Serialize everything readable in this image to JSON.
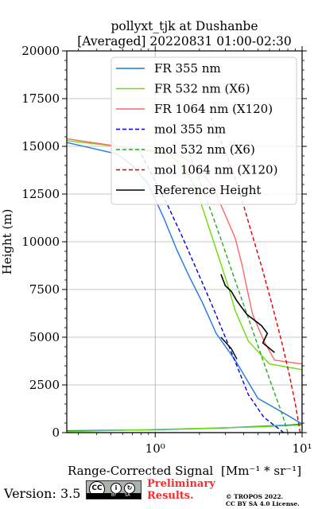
{
  "chart_data": {
    "type": "line",
    "title": "pollyxt_tjk at Dushanbe",
    "subtitle": "[Averaged] 20220831 01:00-02:30",
    "xlabel": "Range-Corrected Signal",
    "xlabel_unit": "[Mm⁻¹ * sr⁻¹]",
    "ylabel": "Height (m)",
    "xscale": "log",
    "xlim": [
      0.25,
      10
    ],
    "ylim": [
      0,
      20000
    ],
    "xticks": [
      {
        "value": 1,
        "label": "10⁰"
      },
      {
        "value": 10,
        "label": "10¹"
      }
    ],
    "yticks": [
      0,
      2500,
      5000,
      7500,
      10000,
      12500,
      15000,
      17500,
      20000
    ],
    "ytick_labels": [
      "0",
      "2500",
      "5000",
      "7500",
      "10000",
      "12500",
      "15000",
      "17500",
      "20000"
    ],
    "grid": true,
    "legend_position": "top-right",
    "series": [
      {
        "name": "FR 355 nm",
        "style": "solid",
        "color": "#1f77e4",
        "points": [
          [
            0.25,
            100
          ],
          [
            1,
            150
          ],
          [
            3,
            250
          ],
          [
            8,
            400
          ],
          [
            10,
            450
          ],
          [
            8,
            900
          ],
          [
            5,
            1800
          ],
          [
            3.5,
            3800
          ],
          [
            2.6,
            5200
          ],
          [
            2.1,
            6800
          ],
          [
            1.7,
            8200
          ],
          [
            1.4,
            9600
          ],
          [
            1.15,
            11200
          ],
          [
            0.9,
            13000
          ],
          [
            0.7,
            14000
          ],
          [
            0.55,
            14600
          ],
          [
            0.25,
            15200
          ]
        ]
      },
      {
        "name": "FR 532 nm (X6)",
        "style": "solid",
        "color": "#66e000",
        "points": [
          [
            0.25,
            50
          ],
          [
            1.5,
            200
          ],
          [
            5,
            300
          ],
          [
            10,
            400
          ],
          [
            10,
            3300
          ],
          [
            6,
            3600
          ],
          [
            4.3,
            4800
          ],
          [
            3.5,
            6400
          ],
          [
            3.1,
            7800
          ],
          [
            2.6,
            9600
          ],
          [
            2.2,
            11300
          ],
          [
            1.9,
            12800
          ],
          [
            1.6,
            13800
          ],
          [
            1.2,
            14700
          ],
          [
            0.25,
            15300
          ]
        ]
      },
      {
        "name": "FR 1064 nm (X120)",
        "style": "solid",
        "color": "#ff6666",
        "points": [
          [
            0.25,
            0
          ],
          [
            10,
            0
          ],
          [
            10,
            3600
          ],
          [
            6.5,
            3800
          ],
          [
            5.5,
            4800
          ],
          [
            4.6,
            6200
          ],
          [
            4.2,
            7600
          ],
          [
            3.9,
            8800
          ],
          [
            3.5,
            10200
          ],
          [
            3,
            11400
          ],
          [
            2.5,
            12800
          ],
          [
            2,
            13800
          ],
          [
            1.5,
            14500
          ],
          [
            0.25,
            15400
          ]
        ]
      },
      {
        "name": "mol 355 nm",
        "style": "dashed",
        "color": "#0000dd",
        "points": [
          [
            7.5,
            0
          ],
          [
            5.5,
            800
          ],
          [
            4.3,
            2000
          ],
          [
            3.6,
            3500
          ],
          [
            3.0,
            5000
          ],
          [
            2.4,
            6800
          ],
          [
            1.9,
            8600
          ],
          [
            1.5,
            10400
          ],
          [
            1.2,
            12000
          ],
          [
            0.95,
            13500
          ],
          [
            0.78,
            14800
          ]
        ]
      },
      {
        "name": "mol 532 nm (X6)",
        "style": "dashed",
        "color": "#22aa22",
        "points": [
          [
            8,
            0
          ],
          [
            7.3,
            1000
          ],
          [
            6.2,
            2500
          ],
          [
            5.3,
            4000
          ],
          [
            4.4,
            5800
          ],
          [
            3.6,
            7700
          ],
          [
            2.9,
            9800
          ],
          [
            2.4,
            11600
          ],
          [
            2.0,
            13200
          ],
          [
            1.7,
            14700
          ]
        ]
      },
      {
        "name": "mol 1064 nm (X120)",
        "style": "dashed",
        "color": "#dd0000",
        "points": [
          [
            9.7,
            0
          ],
          [
            9,
            1500
          ],
          [
            8.2,
            3000
          ],
          [
            7.3,
            4700
          ],
          [
            6.3,
            6600
          ],
          [
            5.3,
            8700
          ],
          [
            4.4,
            10800
          ],
          [
            3.7,
            12800
          ],
          [
            3.0,
            14700
          ],
          [
            2.4,
            16500
          ]
        ]
      },
      {
        "name": "Reference Height",
        "style": "solid",
        "color": "#000000",
        "points": [
          [
            2.8,
            5000
          ],
          [
            3.3,
            4400
          ],
          [
            3.6,
            3850
          ]
        ]
      }
    ],
    "reference_heights": [
      [
        [
          2.8,
          8300
        ],
        [
          3,
          7700
        ],
        [
          3.3,
          7400
        ],
        [
          3.6,
          6900
        ],
        [
          4.2,
          6200
        ],
        [
          5.3,
          5600
        ],
        [
          5.8,
          5200
        ],
        [
          5.4,
          4700
        ],
        [
          6.5,
          4200
        ]
      ]
    ]
  },
  "footer": {
    "version_label": "Version: 3.5",
    "cc_text": "CC",
    "cc_by": "BY",
    "cc_sa": "SA",
    "preliminary_line1": "Preliminary",
    "preliminary_line2": "Results.",
    "license_line1": "© TROPOS 2022.",
    "license_line2": "CC BY SA 4.0 License."
  }
}
